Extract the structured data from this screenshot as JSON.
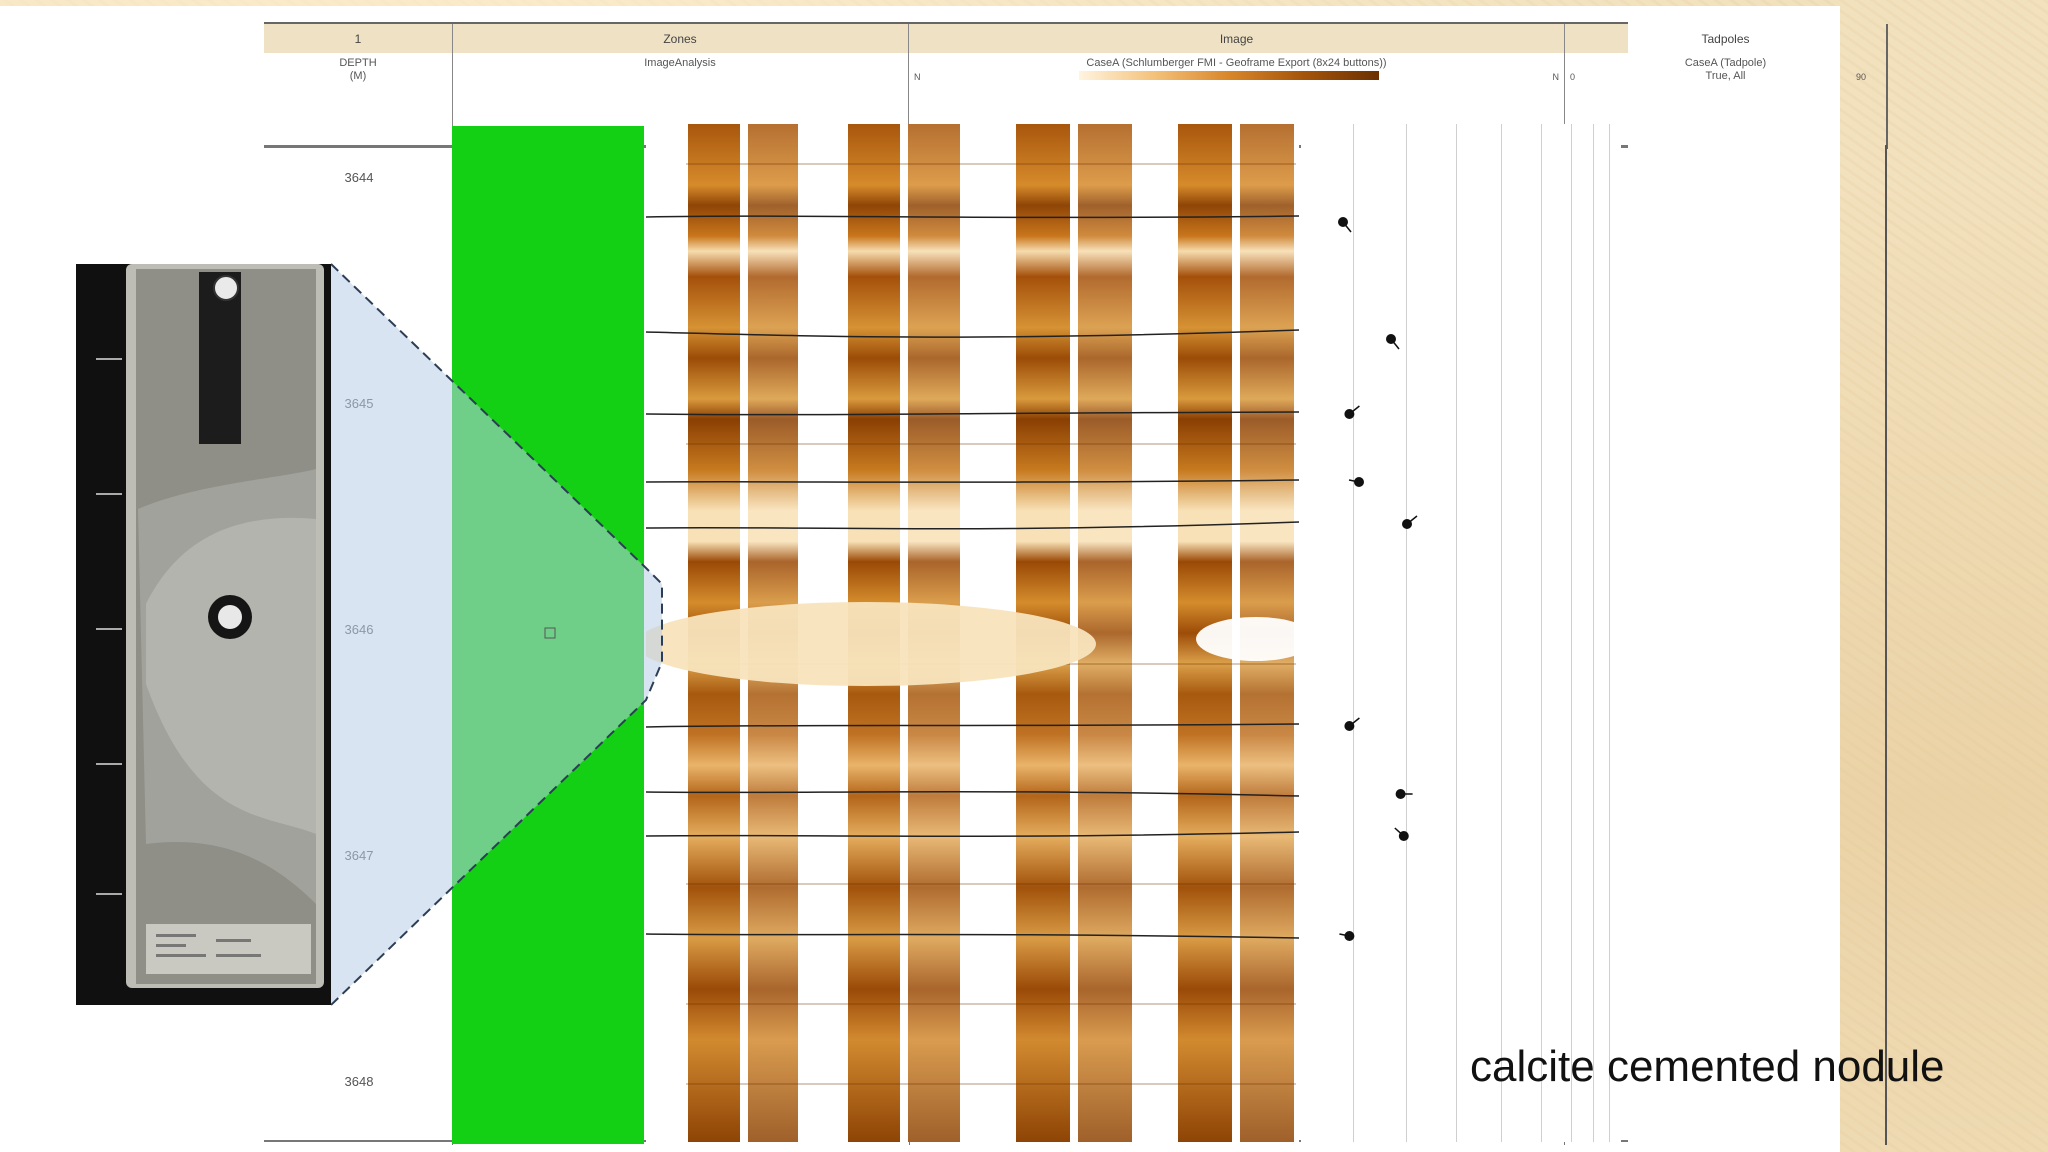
{
  "header": {
    "track_titles": [
      "1",
      "Zones",
      "Image",
      "Tadpoles"
    ],
    "depth_label": "DEPTH",
    "depth_unit": "(M)",
    "zones_label": "ImageAnalysis",
    "image_label": "CaseA (Schlumberger FMI - Geoframe Export (8x24 buttons))",
    "image_scale_left": "N",
    "image_scale_right": "N",
    "tadpole_label": "CaseA (Tadpole)",
    "tadpole_sub": "True, All",
    "tadpole_scale_left": "0",
    "tadpole_scale_right": "90"
  },
  "depths": [
    "3644",
    "3645",
    "3646",
    "3647",
    "3648"
  ],
  "caption": "calcite cemented nodule",
  "colors": {
    "zone_green": "#13cf13",
    "image_dark": "#9a4d05",
    "image_mid": "#d58a2a",
    "image_light": "#f6d9a2",
    "callout_blue": "#b9cde8",
    "background": "#f2e1bd"
  },
  "tadpoles": [
    {
      "dip": 10,
      "azimuth": "SE"
    },
    {
      "dip": 25,
      "azimuth": "SE"
    },
    {
      "dip": 12,
      "azimuth": "NE"
    },
    {
      "dip": 15,
      "azimuth": "W"
    },
    {
      "dip": 30,
      "azimuth": "NE"
    },
    {
      "dip": 12,
      "azimuth": "NE"
    },
    {
      "dip": 28,
      "azimuth": "E"
    },
    {
      "dip": 29,
      "azimuth": "NW"
    },
    {
      "dip": 12,
      "azimuth": "W"
    }
  ]
}
